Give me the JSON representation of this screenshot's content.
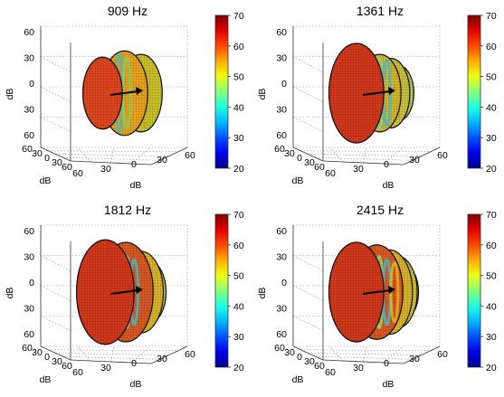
{
  "chart_data": [
    {
      "type": "other",
      "title": "909 Hz",
      "axis_labels": {
        "x": "dB",
        "y": "dB",
        "z": "dB"
      },
      "z_ticks": [
        "60",
        "30",
        "0",
        "30",
        "60"
      ],
      "depth_ticks": [
        "60",
        "30",
        "0",
        "30",
        "60"
      ],
      "width_ticks": [
        "60",
        "30",
        "0",
        "30",
        "60"
      ],
      "colorbar": {
        "min": 20,
        "max": 70,
        "ticks": [
          "70",
          "60",
          "50",
          "40",
          "30",
          "20"
        ]
      },
      "lobes": [
        {
          "offset": -0.55,
          "radius": 0.72,
          "color": "#e0461e"
        },
        {
          "offset": 0.25,
          "radius": 0.85,
          "color": "#e8a21c"
        },
        {
          "offset": 0.85,
          "radius": 0.78,
          "color": "#c9c02a"
        }
      ],
      "band_colors": [
        "#4fb9b0",
        "#8fc85a"
      ]
    },
    {
      "type": "other",
      "title": "1361 Hz",
      "axis_labels": {
        "x": "dB",
        "y": "dB",
        "z": "dB"
      },
      "z_ticks": [
        "60",
        "30",
        "0",
        "30",
        "60"
      ],
      "depth_ticks": [
        "60",
        "30",
        "0",
        "30",
        "60"
      ],
      "width_ticks": [
        "60",
        "30",
        "0",
        "30",
        "60"
      ],
      "colorbar": {
        "min": 20,
        "max": 70,
        "ticks": [
          "70",
          "60",
          "50",
          "40",
          "30",
          "20"
        ]
      },
      "lobes": [
        {
          "offset": -0.5,
          "radius": 1.0,
          "color": "#d2381a"
        },
        {
          "offset": 0.35,
          "radius": 0.78,
          "color": "#d9b42a"
        },
        {
          "offset": 0.75,
          "radius": 0.7,
          "color": "#c8c23c"
        },
        {
          "offset": 1.05,
          "radius": 0.55,
          "color": "#b8c454"
        }
      ],
      "band_colors": [
        "#3fb8c8",
        "#7fcf8a",
        "#3fb8c8"
      ]
    },
    {
      "type": "other",
      "title": "1812 Hz",
      "axis_labels": {
        "x": "dB",
        "y": "dB",
        "z": "dB"
      },
      "z_ticks": [
        "60",
        "30",
        "0",
        "30",
        "60"
      ],
      "depth_ticks": [
        "60",
        "30",
        "0",
        "30",
        "60"
      ],
      "width_ticks": [
        "60",
        "30",
        "0",
        "30",
        "60"
      ],
      "colorbar": {
        "min": 20,
        "max": 70,
        "ticks": [
          "70",
          "60",
          "50",
          "40",
          "30",
          "20"
        ]
      },
      "lobes": [
        {
          "offset": -0.45,
          "radius": 1.05,
          "color": "#d2381a"
        },
        {
          "offset": 0.3,
          "radius": 1.0,
          "color": "#d65a22"
        },
        {
          "offset": 0.85,
          "radius": 0.82,
          "color": "#d9b42a"
        },
        {
          "offset": 1.15,
          "radius": 0.62,
          "color": "#c8c23c"
        }
      ],
      "band_colors": [
        "#e6a020",
        "#6fc9b0",
        "#3fb8c8"
      ]
    },
    {
      "type": "other",
      "title": "2415 Hz",
      "axis_labels": {
        "x": "dB",
        "y": "dB",
        "z": "dB"
      },
      "z_ticks": [
        "60",
        "30",
        "0",
        "30",
        "60"
      ],
      "depth_ticks": [
        "60",
        "30",
        "0",
        "30",
        "60"
      ],
      "width_ticks": [
        "60",
        "30",
        "0",
        "30",
        "60"
      ],
      "colorbar": {
        "min": 20,
        "max": 70,
        "ticks": [
          "70",
          "60",
          "50",
          "40",
          "30",
          "20"
        ]
      },
      "lobes": [
        {
          "offset": -0.5,
          "radius": 1.0,
          "color": "#d2381a"
        },
        {
          "offset": 0.25,
          "radius": 0.95,
          "color": "#d65a22"
        },
        {
          "offset": 0.7,
          "radius": 0.85,
          "color": "#d9b42a"
        },
        {
          "offset": 1.0,
          "radius": 0.72,
          "color": "#c8c23c"
        },
        {
          "offset": 1.22,
          "radius": 0.55,
          "color": "#a8c870"
        }
      ],
      "band_colors": [
        "#3fb8c8",
        "#8fd06a",
        "#3fb8c8",
        "#e6b020"
      ]
    }
  ]
}
